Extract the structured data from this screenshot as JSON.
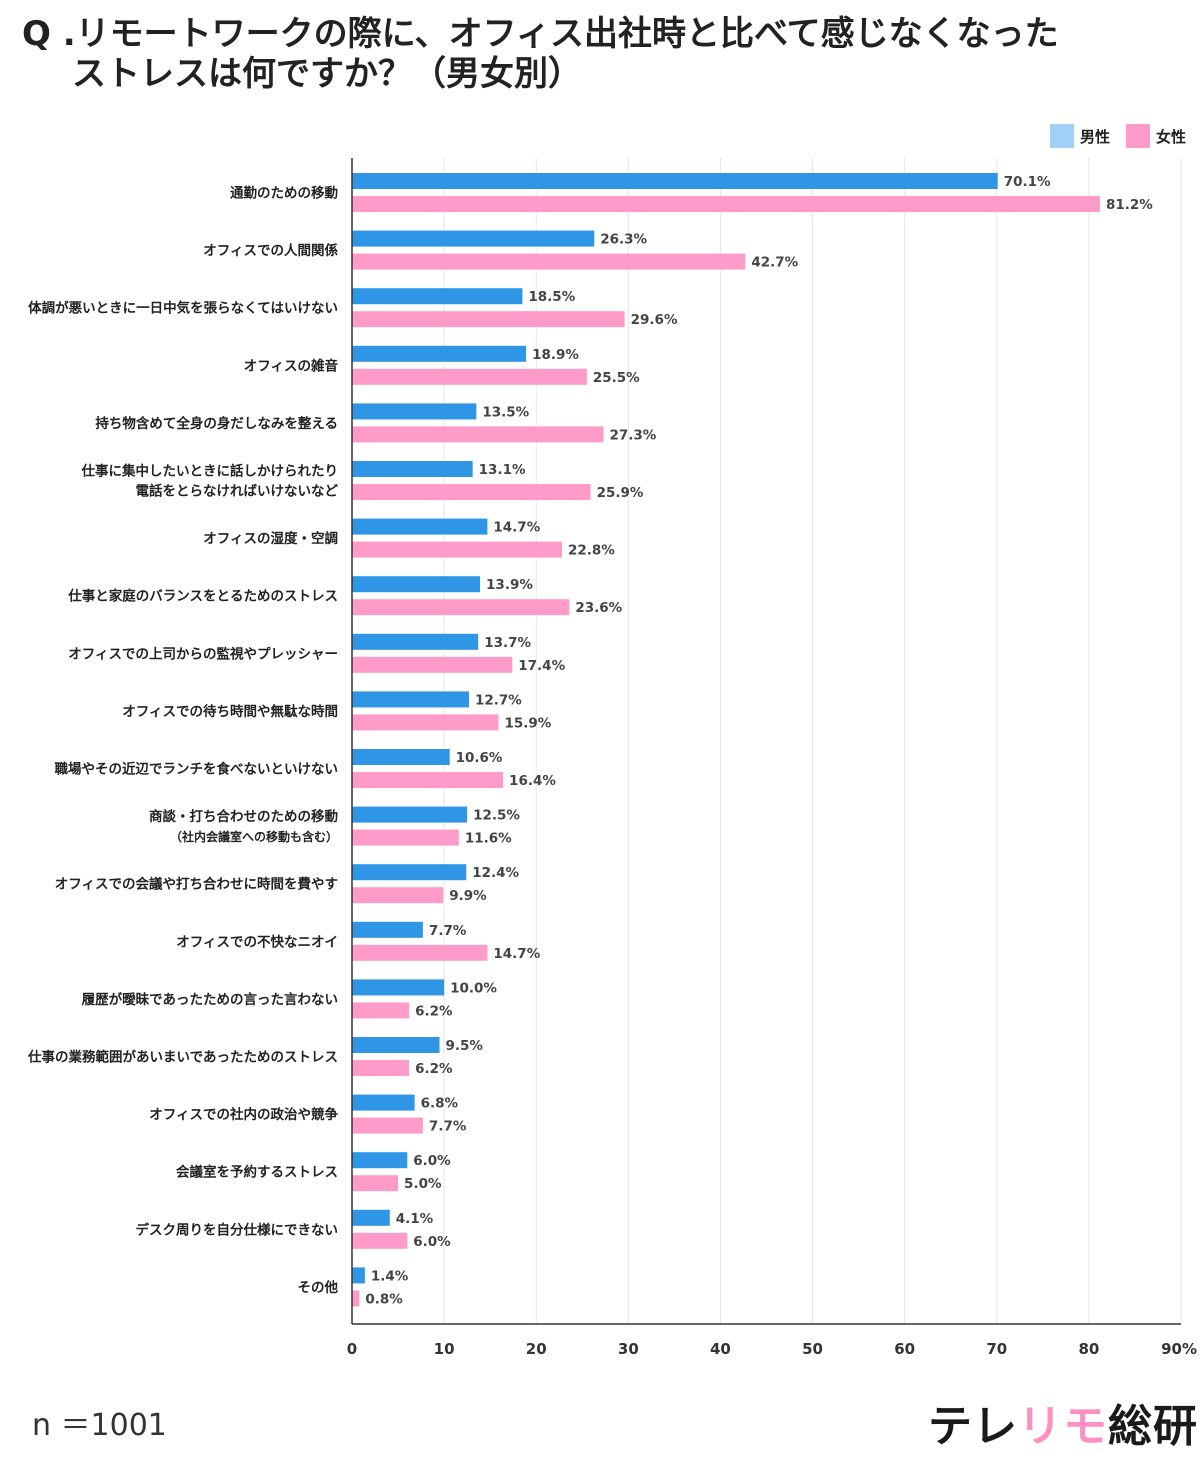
{
  "title": {
    "line1": "Q .リモートワークの際に、オフィス出社時と比べて感じなくなった",
    "line2": "ストレスは何ですか？（男女別）"
  },
  "legend": [
    {
      "label": "男性",
      "color": "#9fd1f7"
    },
    {
      "label": "女性",
      "color": "#ff9bc8"
    }
  ],
  "sample_size": "n ＝1001",
  "logo": {
    "part1": "テレ",
    "part2": "リモ",
    "part3": "総研"
  },
  "colors": {
    "male_bar": "#2f95e5",
    "female_bar": "#ff9bc8",
    "axis": "#333333",
    "grid": "#e6e6e6"
  },
  "chart_data": {
    "type": "bar",
    "orientation": "horizontal",
    "categories": [
      [
        "通勤のための移動"
      ],
      [
        "オフィスでの人間関係"
      ],
      [
        "体調が悪いときに一日中気を張らなくてはいけない"
      ],
      [
        "オフィスの雑音"
      ],
      [
        "持ち物含めて全身の身だしなみを整える"
      ],
      [
        "仕事に集中したいときに話しかけられたり",
        "電話をとらなければいけないなど"
      ],
      [
        "オフィスの湿度・空調"
      ],
      [
        "仕事と家庭のバランスをとるためのストレス"
      ],
      [
        "オフィスでの上司からの監視やプレッシャー"
      ],
      [
        "オフィスでの待ち時間や無駄な時間"
      ],
      [
        "職場やその近辺でランチを食べないといけない"
      ],
      [
        "商談・打ち合わせのための移動",
        "（社内会議室への移動も含む）"
      ],
      [
        "オフィスでの会議や打ち合わせに時間を費やす"
      ],
      [
        "オフィスでの不快なニオイ"
      ],
      [
        "履歴が曖昧であったための言った言わない"
      ],
      [
        "仕事の業務範囲があいまいであったためのストレス"
      ],
      [
        "オフィスでの社内の政治や競争"
      ],
      [
        "会議室を予約するストレス"
      ],
      [
        "デスク周りを自分仕様にできない"
      ],
      [
        "その他"
      ]
    ],
    "series": [
      {
        "name": "男性",
        "values": [
          70.1,
          26.3,
          18.5,
          18.9,
          13.5,
          13.1,
          14.7,
          13.9,
          13.7,
          12.7,
          10.6,
          12.5,
          12.4,
          7.7,
          10.0,
          9.5,
          6.8,
          6.0,
          4.1,
          1.4
        ]
      },
      {
        "name": "女性",
        "values": [
          81.2,
          42.7,
          29.6,
          25.5,
          27.3,
          25.9,
          22.8,
          23.6,
          17.4,
          15.9,
          16.4,
          11.6,
          9.9,
          14.7,
          6.2,
          6.2,
          7.7,
          5.0,
          6.0,
          0.8
        ]
      }
    ],
    "value_suffix": "%",
    "xlim": [
      0,
      90
    ],
    "xticks": [
      "0",
      "10",
      "20",
      "30",
      "40",
      "50",
      "60",
      "70",
      "80",
      "90%"
    ],
    "grid": true,
    "legend_position": "top-right"
  }
}
